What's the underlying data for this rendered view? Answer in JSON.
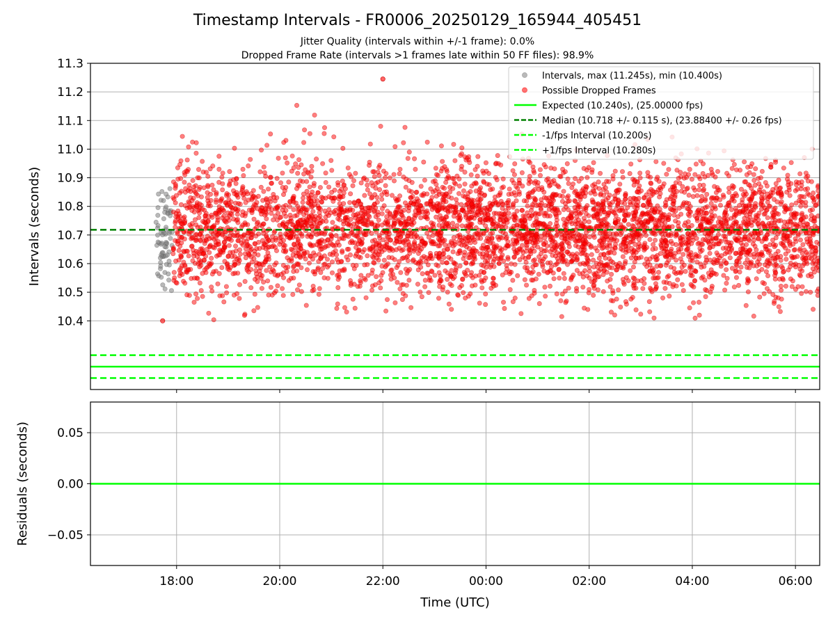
{
  "figure": {
    "title": "Timestamp Intervals - FR0006_20250129_165944_405451",
    "subtitle_line1": "Jitter Quality (intervals within +/-1 frame): 0.0%",
    "subtitle_line2": "Dropped Frame Rate (intervals >1 frames late within 50 FF files): 98.9%"
  },
  "chart_data": [
    {
      "type": "scatter",
      "panel": "intervals",
      "ylabel": "Intervals (seconds)",
      "xlabel": "",
      "x_unit": "hours since 00:00 UTC",
      "xlim": [
        -7.67,
        6.47
      ],
      "ylim": [
        10.16,
        11.3
      ],
      "yticks": [
        10.4,
        10.5,
        10.6,
        10.7,
        10.8,
        10.9,
        11.0,
        11.1,
        11.2,
        11.3
      ],
      "ytick_labels": [
        "10.4",
        "10.5",
        "10.6",
        "10.7",
        "10.8",
        "10.9",
        "11.0",
        "11.1",
        "11.2",
        "11.3"
      ],
      "xticks": [
        -6,
        -4,
        -2,
        0,
        2,
        4,
        6
      ],
      "grid": true,
      "legend_position": "top-right",
      "series": [
        {
          "name": "Intervals, max (11.245s), min (10.400s)",
          "kind": "scatter",
          "color": "#808080",
          "x_range": [
            -6.4,
            -6.07
          ],
          "y_range": [
            10.46,
            10.88
          ],
          "points": 70
        },
        {
          "name": "Possible Dropped Frames",
          "kind": "scatter",
          "color": "#ff0000",
          "x_range": [
            -6.07,
            6.47
          ],
          "y_range": [
            10.4,
            11.245
          ],
          "center": 10.718,
          "spread": 0.115,
          "points": 4600
        },
        {
          "name": "Expected (10.240s), (25.00000 fps)",
          "kind": "hline",
          "y": 10.24,
          "color": "#00ff00",
          "style": "solid"
        },
        {
          "name": "Median (10.718 +/- 0.115 s), (23.88400 +/- 0.26 fps)",
          "kind": "hline",
          "y": 10.718,
          "color": "#008000",
          "style": "dashed"
        },
        {
          "name": "-1/fps Interval (10.200s)",
          "kind": "hline",
          "y": 10.2,
          "color": "#00ff00",
          "style": "dashed"
        },
        {
          "name": "+1/fps Interval (10.280s)",
          "kind": "hline",
          "y": 10.28,
          "color": "#00ff00",
          "style": "dashed"
        }
      ]
    },
    {
      "type": "line",
      "panel": "residuals",
      "ylabel": "Residuals (seconds)",
      "xlabel": "Time (UTC)",
      "xlim": [
        -7.67,
        6.47
      ],
      "ylim": [
        -0.08,
        0.08
      ],
      "yticks": [
        0.05,
        0.0,
        -0.05
      ],
      "ytick_labels": [
        "0.05",
        "0.00",
        "−0.05"
      ],
      "xticks": [
        -6,
        -4,
        -2,
        0,
        2,
        4,
        6
      ],
      "xtick_labels": [
        "18:00",
        "20:00",
        "22:00",
        "00:00",
        "02:00",
        "04:00",
        "06:00"
      ],
      "grid": true,
      "series": [
        {
          "name": "",
          "kind": "hline",
          "y": 0.0,
          "color": "#00ff00",
          "style": "solid"
        }
      ]
    }
  ]
}
